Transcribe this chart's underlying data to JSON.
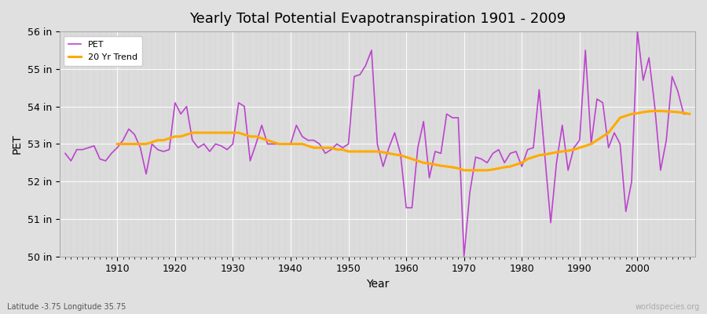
{
  "title": "Yearly Total Potential Evapotranspiration 1901 - 2009",
  "xlabel": "Year",
  "ylabel": "PET",
  "lat_lon_label": "Latitude -3.75 Longitude 35.75",
  "watermark": "worldspecies.org",
  "bg_color": "#e0e0e0",
  "plot_bg_color": "#dcdcdc",
  "pet_color": "#bb44cc",
  "trend_color": "#ffaa00",
  "ylim": [
    50,
    56
  ],
  "ytick_labels": [
    "50 in",
    "51 in",
    "52 in",
    "53 in",
    "54 in",
    "55 in",
    "56 in"
  ],
  "ytick_values": [
    50,
    51,
    52,
    53,
    54,
    55,
    56
  ],
  "xtick_values": [
    1910,
    1920,
    1930,
    1940,
    1950,
    1960,
    1970,
    1980,
    1990,
    2000
  ],
  "years": [
    1901,
    1902,
    1903,
    1904,
    1905,
    1906,
    1907,
    1908,
    1909,
    1910,
    1911,
    1912,
    1913,
    1914,
    1915,
    1916,
    1917,
    1918,
    1919,
    1920,
    1921,
    1922,
    1923,
    1924,
    1925,
    1926,
    1927,
    1928,
    1929,
    1930,
    1931,
    1932,
    1933,
    1934,
    1935,
    1936,
    1937,
    1938,
    1939,
    1940,
    1941,
    1942,
    1943,
    1944,
    1945,
    1946,
    1947,
    1948,
    1949,
    1950,
    1951,
    1952,
    1953,
    1954,
    1955,
    1956,
    1957,
    1958,
    1959,
    1960,
    1961,
    1962,
    1963,
    1964,
    1965,
    1966,
    1967,
    1968,
    1969,
    1970,
    1971,
    1972,
    1973,
    1974,
    1975,
    1976,
    1977,
    1978,
    1979,
    1980,
    1981,
    1982,
    1983,
    1984,
    1985,
    1986,
    1987,
    1988,
    1989,
    1990,
    1991,
    1992,
    1993,
    1994,
    1995,
    1996,
    1997,
    1998,
    1999,
    2000,
    2001,
    2002,
    2003,
    2004,
    2005,
    2006,
    2007,
    2008,
    2009
  ],
  "pet_values": [
    52.75,
    52.55,
    52.85,
    52.85,
    52.9,
    52.95,
    52.6,
    52.55,
    52.75,
    52.9,
    53.1,
    53.4,
    53.25,
    52.9,
    52.2,
    53.0,
    52.85,
    52.8,
    52.85,
    54.1,
    53.8,
    54.0,
    53.1,
    52.9,
    53.0,
    52.8,
    53.0,
    52.95,
    52.85,
    53.0,
    54.1,
    54.0,
    52.55,
    53.0,
    53.5,
    53.0,
    53.0,
    53.0,
    53.0,
    53.0,
    53.5,
    53.2,
    53.1,
    53.1,
    53.0,
    52.75,
    52.85,
    53.0,
    52.9,
    53.0,
    54.8,
    54.85,
    55.1,
    55.5,
    53.0,
    52.4,
    52.9,
    53.3,
    52.75,
    51.3,
    51.3,
    52.9,
    53.6,
    52.1,
    52.8,
    52.75,
    53.8,
    53.7,
    53.7,
    50.0,
    51.7,
    52.65,
    52.6,
    52.5,
    52.75,
    52.85,
    52.5,
    52.75,
    52.8,
    52.4,
    52.85,
    52.9,
    54.45,
    52.65,
    50.9,
    52.5,
    53.5,
    52.3,
    52.9,
    53.1,
    55.5,
    53.0,
    54.2,
    54.1,
    52.9,
    53.3,
    53.0,
    51.2,
    52.0,
    56.0,
    54.7,
    55.3,
    54.0,
    52.3,
    53.1,
    54.8,
    54.4,
    53.8,
    53.8
  ],
  "trend_values": [
    null,
    null,
    null,
    null,
    null,
    null,
    null,
    null,
    null,
    53.0,
    53.0,
    53.0,
    53.0,
    53.0,
    53.0,
    53.05,
    53.1,
    53.1,
    53.15,
    53.2,
    53.2,
    53.25,
    53.3,
    53.3,
    53.3,
    53.3,
    53.3,
    53.3,
    53.3,
    53.3,
    53.3,
    53.25,
    53.2,
    53.2,
    53.15,
    53.1,
    53.05,
    53.0,
    53.0,
    53.0,
    53.0,
    53.0,
    52.95,
    52.9,
    52.9,
    52.9,
    52.9,
    52.85,
    52.85,
    52.8,
    52.8,
    52.8,
    52.8,
    52.8,
    52.8,
    52.78,
    52.75,
    52.72,
    52.7,
    52.65,
    52.6,
    52.55,
    52.5,
    52.48,
    52.45,
    52.42,
    52.4,
    52.38,
    52.35,
    52.3,
    52.3,
    52.3,
    52.3,
    52.3,
    52.32,
    52.35,
    52.38,
    52.4,
    52.45,
    52.5,
    52.6,
    52.65,
    52.7,
    52.72,
    52.75,
    52.78,
    52.8,
    52.82,
    52.85,
    52.9,
    52.95,
    53.0,
    53.1,
    53.2,
    53.3,
    53.5,
    53.7,
    53.75,
    53.8,
    53.82,
    53.85,
    53.87,
    53.88,
    53.88,
    53.87,
    53.86,
    53.85,
    53.83,
    53.8
  ]
}
